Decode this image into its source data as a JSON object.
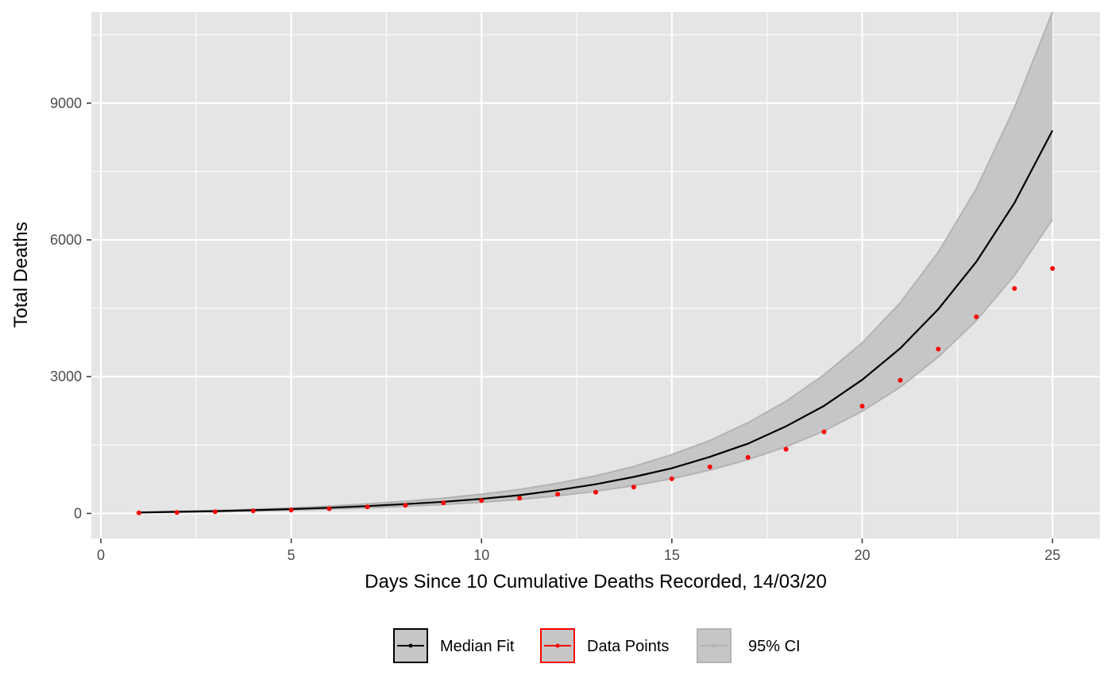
{
  "chart_data": {
    "type": "line",
    "xlabel": "Days Since 10 Cumulative Deaths Recorded, 14/03/20",
    "ylabel": "Total Deaths",
    "xlim": [
      -0.25,
      26.25
    ],
    "ylim": [
      -550,
      11000
    ],
    "x_ticks": [
      0,
      5,
      10,
      15,
      20,
      25
    ],
    "x_tick_labels": [
      "0",
      "5",
      "10",
      "15",
      "20",
      "25"
    ],
    "y_ticks": [
      0,
      3000,
      6000,
      9000
    ],
    "y_tick_labels": [
      "0",
      "3000",
      "6000",
      "9000"
    ],
    "grid": true,
    "legend_position": "bottom",
    "colors": {
      "panel": "#e5e5e5",
      "grid": "#ffffff",
      "median": "#000000",
      "points": "#ff0000",
      "ci_fill": "#c6c6c6",
      "ci_line": "#b3b3b3"
    },
    "x": [
      1,
      2,
      3,
      4,
      5,
      6,
      7,
      8,
      9,
      10,
      11,
      12,
      13,
      14,
      15,
      16,
      17,
      18,
      19,
      20,
      21,
      22,
      23,
      24,
      25
    ],
    "series": [
      {
        "name": "Median Fit",
        "values": [
          20,
          35,
          50,
          70,
          95,
          125,
          160,
          205,
          255,
          320,
          400,
          510,
          640,
          800,
          990,
          1240,
          1530,
          1910,
          2360,
          2930,
          3620,
          4480,
          5520,
          6810,
          8400
        ]
      },
      {
        "name": "Data Points",
        "values": [
          11,
          21,
          35,
          55,
          72,
          104,
          144,
          177,
          233,
          281,
          335,
          422,
          465,
          578,
          759,
          1019,
          1228,
          1408,
          1789,
          2352,
          2921,
          3605,
          4313,
          4934,
          5373
        ]
      },
      {
        "name": "95% CI",
        "lower": [
          15,
          25,
          38,
          53,
          72,
          95,
          120,
          155,
          195,
          245,
          305,
          385,
          485,
          610,
          760,
          950,
          1180,
          1460,
          1810,
          2240,
          2770,
          3430,
          4230,
          5220,
          6450
        ],
        "upper": [
          28,
          45,
          65,
          90,
          120,
          160,
          210,
          265,
          335,
          420,
          525,
          660,
          825,
          1030,
          1290,
          1600,
          1990,
          2460,
          3040,
          3740,
          4620,
          5730,
          7120,
          8900,
          11000
        ]
      }
    ]
  }
}
